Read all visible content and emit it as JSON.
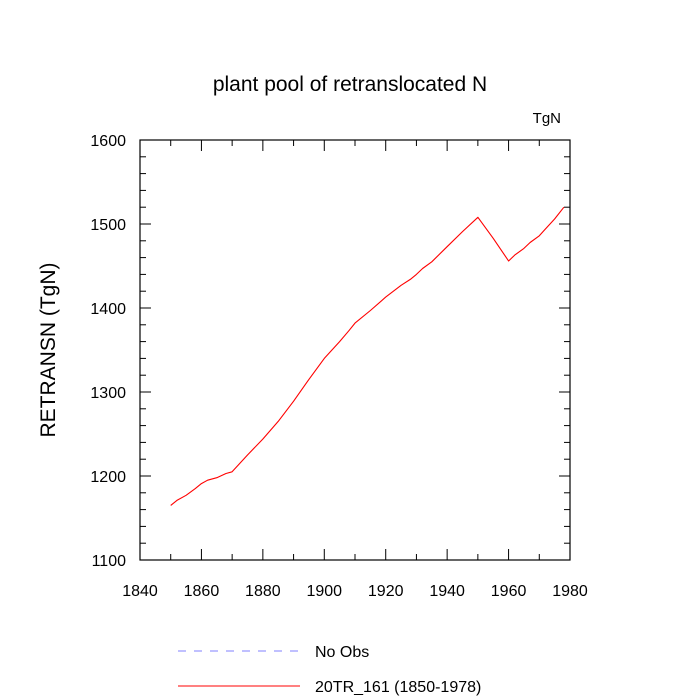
{
  "chart_data": {
    "type": "line",
    "title": "plant pool of retranslocated N",
    "units_label": "TgN",
    "xlabel": "",
    "ylabel": "RETRANSN  (TgN)",
    "xlim": [
      1840,
      1980
    ],
    "ylim": [
      1100,
      1600
    ],
    "xticks": [
      1840,
      1860,
      1880,
      1900,
      1920,
      1940,
      1960,
      1980
    ],
    "yticks": [
      1100,
      1200,
      1300,
      1400,
      1500,
      1600
    ],
    "grid": false,
    "legend_position": "bottom-center",
    "series": [
      {
        "name": "No Obs",
        "style": "dashed",
        "color": "#8080ff",
        "x": [],
        "y": []
      },
      {
        "name": "20TR_161 (1850-1978)",
        "style": "solid",
        "color": "#ff0000",
        "x": [
          1850,
          1852,
          1855,
          1858,
          1860,
          1862,
          1865,
          1868,
          1870,
          1875,
          1880,
          1885,
          1890,
          1895,
          1900,
          1905,
          1908,
          1910,
          1915,
          1920,
          1925,
          1928,
          1930,
          1932,
          1935,
          1940,
          1945,
          1950,
          1955,
          1960,
          1962,
          1965,
          1967,
          1970,
          1972,
          1975,
          1978
        ],
        "y": [
          1165,
          1171,
          1177,
          1185,
          1191,
          1195,
          1198,
          1203,
          1205,
          1225,
          1244,
          1265,
          1289,
          1315,
          1340,
          1360,
          1373,
          1382,
          1397,
          1413,
          1427,
          1434,
          1440,
          1447,
          1455,
          1473,
          1491,
          1508,
          1483,
          1456,
          1463,
          1471,
          1478,
          1486,
          1494,
          1506,
          1520
        ]
      }
    ]
  }
}
